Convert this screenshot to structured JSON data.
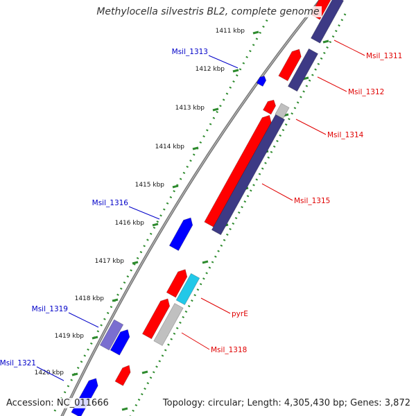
{
  "title": "Methylocella silvestris BL2, complete genome",
  "footer": {
    "accession": "Accession: NC_011666",
    "stats": "Topology: circular; Length: 4,305,430 bp; Genes: 3,872"
  },
  "colors": {
    "backbone": "#888888",
    "tick": "#2e8b2e",
    "forward_cds": "#ff0000",
    "reverse_gene": "#0000ff",
    "protein_track": "#3d3a85",
    "protein_track_light": "#7a6ed0",
    "gray_track": "#c0c0c0",
    "cyan_track": "#22c8e8",
    "label_red": "#e00000",
    "label_blue": "#0000c8"
  },
  "kbp_labels": [
    "1411 kbp",
    "1412 kbp",
    "1413 kbp",
    "1414 kbp",
    "1415 kbp",
    "1416 kbp",
    "1417 kbp",
    "1418 kbp",
    "1419 kbp",
    "1420 kbp"
  ],
  "gene_labels": {
    "right": [
      "Msil_1311",
      "Msil_1312",
      "Msil_1314",
      "Msil_1315",
      "pyrE",
      "Msil_1318"
    ],
    "left": [
      "Msil_1313",
      "Msil_1316",
      "Msil_1319",
      "Msil_1321"
    ]
  }
}
